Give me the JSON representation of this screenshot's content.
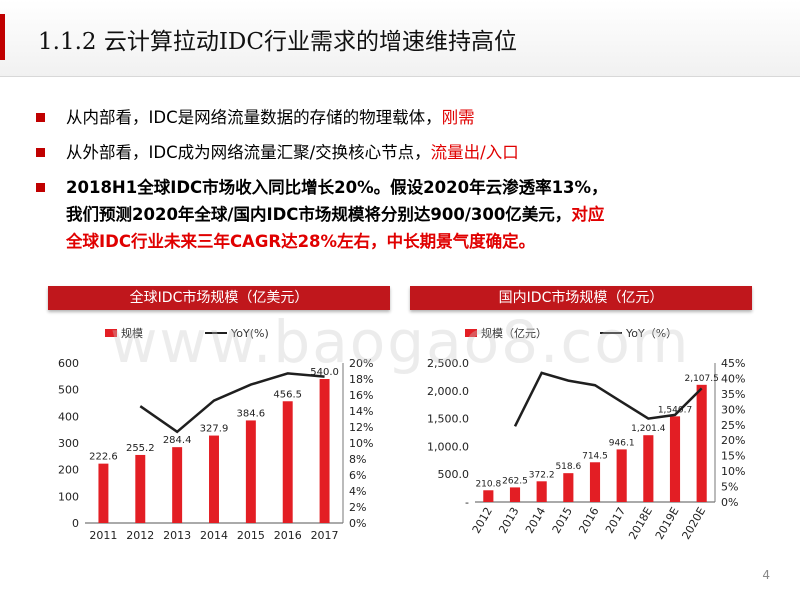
{
  "title": "1.1.2 云计算拉动IDC行业需求的增速维持高位",
  "bullets": [
    {
      "normal": "从内部看，IDC是网络流量数据的存储的物理载体，",
      "highlight": "刚需"
    },
    {
      "normal": "从外部看，IDC成为网络流量汇聚/交换核心节点，",
      "highlight": "流量出/入口"
    },
    {
      "line1": "2018H1全球IDC市场收入同比增长20%。假设2020年云渗透率13%，",
      "line2a": "我们预测2020年全球/国内IDC市场规模将分别达900/300亿美元，",
      "line2b": "对应",
      "line3": "全球IDC行业未来三年CAGR达28%左右，中长期景气度确定。"
    }
  ],
  "banner_left": "全球IDC市场规模（亿美元）",
  "banner_right": "国内IDC市场规模（亿元）",
  "watermark": "www.baogao8.com",
  "page_number": "4",
  "colors": {
    "bar": "#e31e24",
    "line": "#1f1f1f",
    "accent": "#c00000"
  },
  "chart_data": [
    {
      "type": "bar",
      "legend": [
        "规模",
        "YoY(%)"
      ],
      "categories": [
        "2011",
        "2012",
        "2013",
        "2014",
        "2015",
        "2016",
        "2017"
      ],
      "series": [
        {
          "name": "规模",
          "values": [
            222.6,
            255.2,
            284.4,
            327.9,
            384.6,
            456.5,
            540.0
          ],
          "labels": [
            "222.6",
            "255.2",
            "284.4",
            "327.9",
            "384.6",
            "456.5",
            "540.0"
          ]
        },
        {
          "name": "YoY(%)",
          "type": "line",
          "values": [
            null,
            14.6,
            11.4,
            15.3,
            17.3,
            18.7,
            18.3
          ]
        }
      ],
      "y_left_ticks": [
        "0",
        "100",
        "200",
        "300",
        "400",
        "500",
        "600"
      ],
      "y_left_range": [
        0,
        600
      ],
      "y_right_ticks": [
        "0%",
        "2%",
        "4%",
        "6%",
        "8%",
        "10%",
        "12%",
        "14%",
        "16%",
        "18%",
        "20%"
      ],
      "y_right_range": [
        0,
        20
      ]
    },
    {
      "type": "bar",
      "legend": [
        "规模（亿元）",
        "YoY（%）"
      ],
      "categories": [
        "2012",
        "2013",
        "2014",
        "2015",
        "2016",
        "2017",
        "2018E",
        "2019E",
        "2020E"
      ],
      "series": [
        {
          "name": "规模（亿元）",
          "values": [
            210.8,
            262.5,
            372.2,
            518.6,
            714.5,
            946.1,
            1201.4,
            1540.7,
            2107.5
          ],
          "labels": [
            "210.8",
            "262.5",
            "372.2",
            "518.6",
            "714.5",
            "946.1",
            "1,201.4",
            "1,540.7",
            "2,107.5"
          ]
        },
        {
          "name": "YoY（%）",
          "type": "line",
          "values": [
            null,
            24.5,
            41.8,
            39.3,
            37.8,
            32.4,
            27.0,
            28.2,
            36.8
          ]
        }
      ],
      "y_left_ticks": [
        "-",
        "500.0",
        "1,000.0",
        "1,500.0",
        "2,000.0",
        "2,500.0"
      ],
      "y_left_range": [
        0,
        2500
      ],
      "y_right_ticks": [
        "0%",
        "5%",
        "10%",
        "15%",
        "20%",
        "25%",
        "30%",
        "35%",
        "40%",
        "45%"
      ],
      "y_right_range": [
        0,
        45
      ]
    }
  ]
}
